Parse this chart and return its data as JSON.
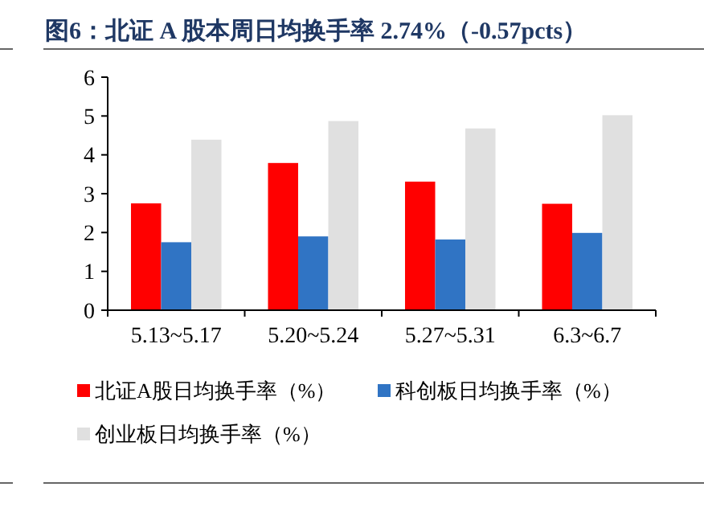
{
  "chart_data": {
    "type": "bar",
    "title": "图6：北证 A 股本周日均换手率 2.74%（-0.57pcts）",
    "categories": [
      "5.13~5.17",
      "5.20~5.24",
      "5.27~5.31",
      "6.3~6.7"
    ],
    "series": [
      {
        "name": "北证A股日均换手率（%）",
        "color": "#ff0000",
        "values": [
          2.75,
          3.79,
          3.31,
          2.74
        ]
      },
      {
        "name": "科创板日均换手率（%）",
        "color": "#3074c4",
        "values": [
          1.75,
          1.9,
          1.82,
          1.99
        ]
      },
      {
        "name": "创业板日均换手率（%）",
        "color": "#e0e0e0",
        "values": [
          4.39,
          4.87,
          4.68,
          5.02
        ]
      }
    ],
    "ylim": [
      0,
      6
    ],
    "yticks": [
      0,
      1,
      2,
      3,
      4,
      5,
      6
    ],
    "grid": false,
    "legend": "bottom"
  }
}
